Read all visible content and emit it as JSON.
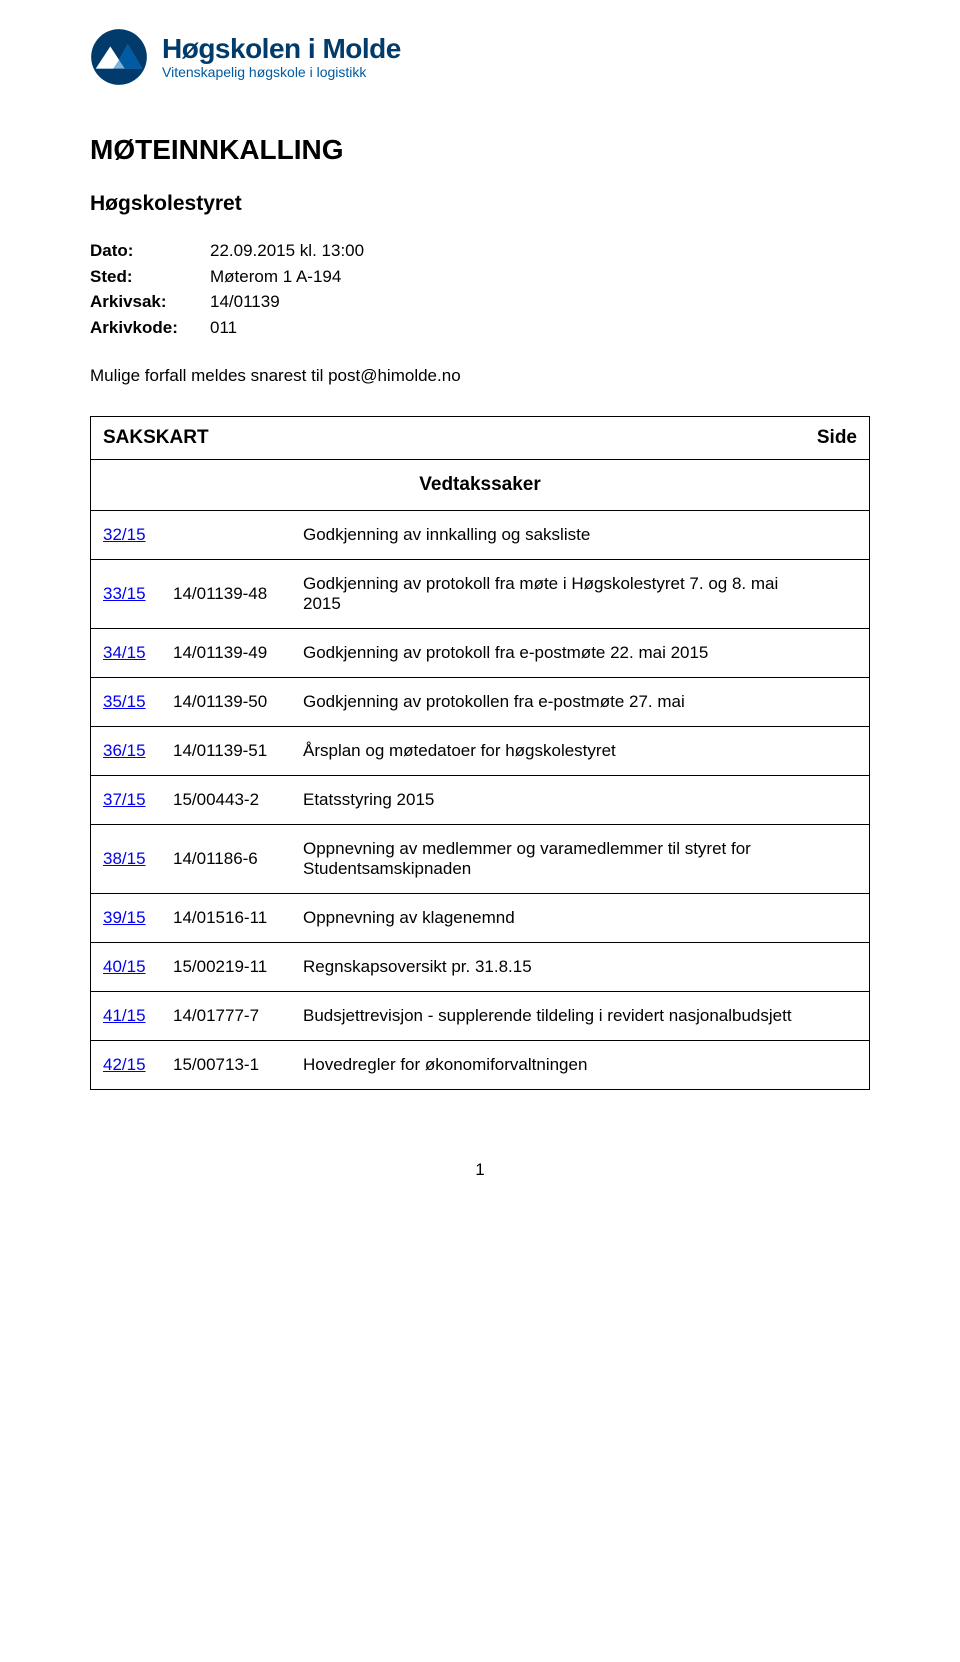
{
  "logo": {
    "main": "Høgskolen i Molde",
    "sub": "Vitenskapelig høgskole i logistikk",
    "colors": {
      "dark": "#003b6b",
      "mid": "#005ba3",
      "light": "#7eb3db",
      "white": "#ffffff"
    }
  },
  "title": "MØTEINNKALLING",
  "subtitle": "Høgskolestyret",
  "meta": {
    "dato_label": "Dato:",
    "dato": "22.09.2015 kl. 13:00",
    "sted_label": "Sted:",
    "sted": "Møterom 1 A-194",
    "sak_label": "Arkivsak:",
    "sak": "14/01139",
    "kode_label": "Arkivkode:",
    "kode": "011"
  },
  "forfall": "Mulige forfall meldes snarest til post@himolde.no",
  "sakskart": {
    "heading_left": "SAKSKART",
    "heading_right": "Side",
    "section": "Vedtakssaker",
    "rows": [
      {
        "id": "32/15",
        "ref": "",
        "title": "Godkjenning av innkalling og saksliste"
      },
      {
        "id": "33/15",
        "ref": "14/01139-48",
        "title": "Godkjenning av protokoll fra møte i Høgskolestyret 7. og 8. mai 2015"
      },
      {
        "id": "34/15",
        "ref": "14/01139-49",
        "title": "Godkjenning av protokoll fra e-postmøte 22. mai 2015"
      },
      {
        "id": "35/15",
        "ref": "14/01139-50",
        "title": "Godkjenning av protokollen fra e-postmøte 27. mai"
      },
      {
        "id": "36/15",
        "ref": "14/01139-51",
        "title": "Årsplan og møtedatoer for høgskolestyret"
      },
      {
        "id": "37/15",
        "ref": "15/00443-2",
        "title": "Etatsstyring 2015"
      },
      {
        "id": "38/15",
        "ref": "14/01186-6",
        "title": "Oppnevning av medlemmer og varamedlemmer til styret for Studentsamskipnaden"
      },
      {
        "id": "39/15",
        "ref": "14/01516-11",
        "title": "Oppnevning av klagenemnd"
      },
      {
        "id": "40/15",
        "ref": "15/00219-11",
        "title": "Regnskapsoversikt pr. 31.8.15"
      },
      {
        "id": "41/15",
        "ref": "14/01777-7",
        "title": "Budsjettrevisjon - supplerende tildeling i revidert nasjonalbudsjett"
      },
      {
        "id": "42/15",
        "ref": "15/00713-1",
        "title": "Hovedregler for økonomiforvaltningen"
      }
    ]
  },
  "page_number": "1"
}
